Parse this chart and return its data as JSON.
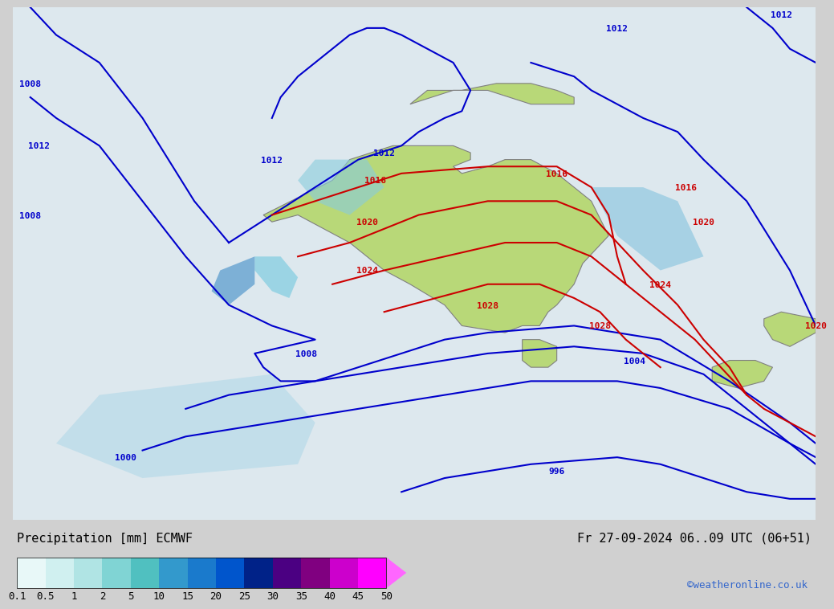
{
  "title_left": "Precipitation [mm] ECMWF",
  "title_right": "Fr 27-09-2024 06..09 UTC (06+51)",
  "credit": "©weatheronline.co.uk",
  "colorbar_values": [
    0.1,
    0.5,
    1,
    2,
    5,
    10,
    15,
    20,
    25,
    30,
    35,
    40,
    45,
    50
  ],
  "colorbar_colors": [
    "#e0f5f5",
    "#c5ecec",
    "#aadfe0",
    "#7fcfcf",
    "#55bfbf",
    "#3399cc",
    "#1a7acc",
    "#0055cc",
    "#003399",
    "#551a8b",
    "#8b008b",
    "#cc00cc",
    "#ff00ff",
    "#ff55ff"
  ],
  "background_color": "#d9d9d9",
  "map_background": "#e8e8e8",
  "land_color": "#c8e6a0",
  "ocean_color": "#e8e8e8",
  "fig_width": 10.0,
  "fig_height": 7.33,
  "label_fontsize": 11,
  "credit_fontsize": 9,
  "colorbar_label_fontsize": 9
}
